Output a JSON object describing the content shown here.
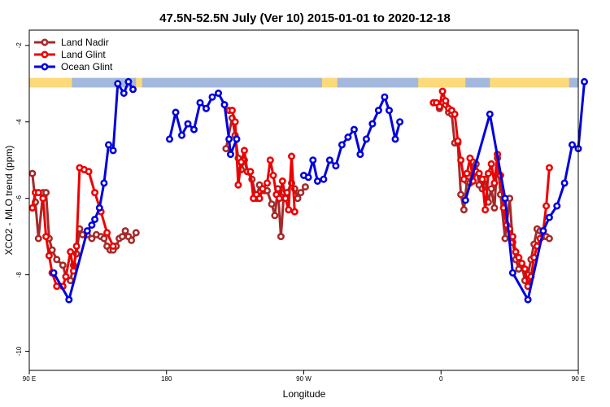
{
  "chart_data": {
    "type": "line",
    "title": "47.5N-52.5N July (Ver 10)   2015-01-01 to 2020-12-18",
    "xlabel": "Longitude",
    "ylabel": "XCO2 - MLO trend (ppm)",
    "xlim": [
      90,
      450
    ],
    "ylim": [
      -10.5,
      -1.6
    ],
    "x_ticks": [
      {
        "value": 90,
        "label": "90 E"
      },
      {
        "value": 180,
        "label": "180"
      },
      {
        "value": 270,
        "label": "90 W"
      },
      {
        "value": 360,
        "label": "0"
      },
      {
        "value": 450,
        "label": "90 E"
      },
      {
        "value": 540,
        "label": "180"
      }
    ],
    "y_ticks": [
      {
        "value": -2,
        "label": "-2"
      },
      {
        "value": -4,
        "label": "-4"
      },
      {
        "value": -6,
        "label": "-6"
      },
      {
        "value": -8,
        "label": "-8"
      },
      {
        "value": -10,
        "label": "-10"
      }
    ],
    "x_axis_note": "Longitude axis runs 90E eastward across 180 and 0 back to 90E and on to 180 (values >180 expressed as degrees east continuing)",
    "land_sea_strip": {
      "y_range": [
        -3.1,
        -2.85
      ],
      "land_color": "#fcd97a",
      "ocean_color": "#a3b8dc"
    },
    "legend_position": "top-left",
    "series": [
      {
        "name": "Land Nadir",
        "color": "#a52a2a",
        "segments": [
          [
            [
              92,
              -5.35
            ],
            [
              94,
              -6.1
            ],
            [
              96,
              -7.05
            ],
            [
              99,
              -5.85
            ],
            [
              101,
              -5.85
            ],
            [
              103,
              -7.05
            ],
            [
              105,
              -7.35
            ],
            [
              108,
              -7.6
            ],
            [
              112,
              -7.75
            ],
            [
              114,
              -8.05
            ],
            [
              117,
              -8.15
            ],
            [
              119,
              -7.75
            ],
            [
              121,
              -7.45
            ],
            [
              123,
              -6.8
            ],
            [
              125,
              -6.95
            ],
            [
              128,
              -6.95
            ],
            [
              131,
              -7.05
            ],
            [
              134,
              -6.95
            ],
            [
              137,
              -7.0
            ],
            [
              139,
              -7.05
            ],
            [
              141,
              -7.25
            ],
            [
              143,
              -7.35
            ],
            [
              145,
              -7.35
            ],
            [
              147,
              -7.25
            ],
            [
              149,
              -7.05
            ],
            [
              151,
              -7.0
            ],
            [
              153,
              -6.85
            ],
            [
              155,
              -7.0
            ],
            [
              157,
              -7.1
            ],
            [
              160,
              -6.9
            ]
          ],
          [
            [
              219,
              -4.7
            ],
            [
              223,
              -3.9
            ],
            [
              225,
              -4.35
            ],
            [
              227,
              -4.95
            ],
            [
              229,
              -5.25
            ],
            [
              231,
              -5.0
            ],
            [
              233,
              -5.3
            ],
            [
              236,
              -5.5
            ],
            [
              239,
              -6.0
            ],
            [
              241,
              -5.65
            ],
            [
              244,
              -5.8
            ],
            [
              246,
              -5.8
            ],
            [
              249,
              -6.15
            ],
            [
              251,
              -6.45
            ],
            [
              253,
              -5.75
            ],
            [
              255,
              -7.0
            ],
            [
              257,
              -5.85
            ],
            [
              259,
              -5.85
            ],
            [
              262,
              -5.6
            ],
            [
              264,
              -5.75
            ],
            [
              266,
              -6.0
            ],
            [
              268,
              -5.85
            ],
            [
              271,
              -5.7
            ]
          ],
          [
            [
              359,
              -3.65
            ],
            [
              361,
              -3.5
            ],
            [
              363,
              -3.55
            ],
            [
              365,
              -3.75
            ],
            [
              367,
              -3.8
            ],
            [
              369,
              -4.55
            ],
            [
              371,
              -4.55
            ],
            [
              373,
              -5.9
            ],
            [
              375,
              -6.3
            ],
            [
              377,
              -5.55
            ],
            [
              379,
              -5.6
            ],
            [
              381,
              -5.05
            ],
            [
              383,
              -5.1
            ],
            [
              385,
              -5.65
            ],
            [
              387,
              -5.75
            ],
            [
              389,
              -5.5
            ],
            [
              391,
              -6.1
            ],
            [
              393,
              -5.75
            ],
            [
              395,
              -6.25
            ],
            [
              397,
              -4.95
            ],
            [
              399,
              -5.9
            ],
            [
              402,
              -7.05
            ],
            [
              405,
              -6.0
            ],
            [
              407,
              -7.15
            ],
            [
              409,
              -7.6
            ],
            [
              411,
              -7.85
            ],
            [
              413,
              -7.75
            ],
            [
              415,
              -8.15
            ],
            [
              417,
              -8.0
            ],
            [
              419,
              -7.6
            ],
            [
              421,
              -7.2
            ],
            [
              423,
              -6.8
            ],
            [
              425,
              -6.85
            ],
            [
              427,
              -7.0
            ],
            [
              429,
              -7.0
            ],
            [
              431,
              -7.05
            ]
          ]
        ]
      },
      {
        "name": "Land Glint",
        "color": "#ee0000",
        "segments": [
          [
            [
              92,
              -6.25
            ],
            [
              94,
              -5.85
            ],
            [
              96,
              -5.85
            ],
            [
              99,
              -6.0
            ],
            [
              101,
              -7.0
            ],
            [
              103,
              -7.5
            ],
            [
              105,
              -7.95
            ],
            [
              108,
              -8.3
            ],
            [
              112,
              -8.3
            ],
            [
              114,
              -8.05
            ],
            [
              117,
              -7.4
            ],
            [
              119,
              -7.9
            ],
            [
              121,
              -7.25
            ],
            [
              123,
              -5.2
            ],
            [
              126,
              -5.25
            ],
            [
              129,
              -5.3
            ],
            [
              133,
              -5.85
            ],
            [
              137,
              -6.35
            ],
            [
              141,
              -6.9
            ],
            [
              145,
              -7.25
            ]
          ],
          [
            [
              221,
              -3.7
            ],
            [
              223,
              -3.7
            ],
            [
              225,
              -4.0
            ],
            [
              227,
              -5.65
            ],
            [
              229,
              -5.05
            ],
            [
              231,
              -4.75
            ],
            [
              233,
              -5.3
            ],
            [
              235,
              -5.3
            ],
            [
              237,
              -6.0
            ],
            [
              239,
              -5.9
            ],
            [
              241,
              -6.0
            ],
            [
              243,
              -5.75
            ],
            [
              246,
              -5.6
            ],
            [
              248,
              -5.0
            ],
            [
              250,
              -5.4
            ],
            [
              252,
              -5.9
            ],
            [
              254,
              -6.0
            ],
            [
              256,
              -5.55
            ],
            [
              258,
              -6.0
            ],
            [
              260,
              -6.3
            ],
            [
              262,
              -4.9
            ],
            [
              264,
              -6.35
            ]
          ],
          [
            [
              355,
              -3.5
            ],
            [
              357,
              -3.5
            ],
            [
              359,
              -3.6
            ],
            [
              361,
              -3.2
            ],
            [
              363,
              -3.45
            ],
            [
              365,
              -3.65
            ],
            [
              367,
              -3.7
            ],
            [
              369,
              -3.8
            ],
            [
              371,
              -4.5
            ],
            [
              373,
              -5.0
            ],
            [
              375,
              -5.5
            ],
            [
              377,
              -5.35
            ],
            [
              379,
              -4.95
            ],
            [
              381,
              -5.55
            ],
            [
              383,
              -5.3
            ],
            [
              385,
              -5.35
            ],
            [
              387,
              -5.5
            ],
            [
              389,
              -6.3
            ],
            [
              391,
              -5.35
            ],
            [
              393,
              -5.1
            ],
            [
              395,
              -5.6
            ],
            [
              397,
              -4.85
            ],
            [
              399,
              -5.4
            ],
            [
              401,
              -6.25
            ],
            [
              403,
              -6.7
            ],
            [
              405,
              -6.8
            ],
            [
              407,
              -7.0
            ],
            [
              409,
              -7.4
            ],
            [
              411,
              -7.55
            ],
            [
              413,
              -7.7
            ],
            [
              415,
              -7.85
            ],
            [
              417,
              -8.3
            ],
            [
              419,
              -8.05
            ],
            [
              421,
              -7.55
            ],
            [
              423,
              -7.25
            ],
            [
              425,
              -7.05
            ],
            [
              427,
              -6.85
            ],
            [
              429,
              -6.2
            ],
            [
              431,
              -5.2
            ]
          ]
        ]
      },
      {
        "name": "Ocean Glint",
        "color": "#0000dd",
        "segments": [
          [
            [
              106,
              -7.95
            ],
            [
              116,
              -8.65
            ],
            [
              128,
              -6.85
            ],
            [
              131,
              -6.7
            ],
            [
              133,
              -6.55
            ],
            [
              136,
              -6.25
            ],
            [
              139,
              -5.6
            ],
            [
              142,
              -4.6
            ],
            [
              145,
              -4.75
            ],
            [
              148,
              -3.0
            ],
            [
              152,
              -3.25
            ],
            [
              155,
              -2.95
            ],
            [
              158,
              -3.15
            ]
          ],
          [
            [
              182,
              -4.45
            ],
            [
              186,
              -3.75
            ],
            [
              190,
              -4.35
            ],
            [
              194,
              -4.05
            ],
            [
              198,
              -4.2
            ],
            [
              202,
              -3.5
            ],
            [
              206,
              -3.65
            ],
            [
              210,
              -3.35
            ],
            [
              214,
              -3.25
            ],
            [
              218,
              -3.55
            ],
            [
              221,
              -4.45
            ],
            [
              222,
              -4.85
            ],
            [
              226,
              -4.45
            ]
          ],
          [
            [
              270,
              -5.4
            ],
            [
              273,
              -5.45
            ],
            [
              276,
              -5.0
            ],
            [
              279,
              -5.55
            ],
            [
              283,
              -5.5
            ],
            [
              287,
              -5.0
            ],
            [
              291,
              -5.15
            ],
            [
              295,
              -4.6
            ],
            [
              299,
              -4.4
            ],
            [
              303,
              -4.2
            ],
            [
              307,
              -4.85
            ],
            [
              311,
              -4.45
            ],
            [
              315,
              -4.05
            ],
            [
              319,
              -3.7
            ],
            [
              323,
              -3.35
            ],
            [
              326,
              -3.7
            ],
            [
              330,
              -4.45
            ],
            [
              333,
              -4.0
            ]
          ],
          [
            [
              376,
              -6.05
            ],
            [
              392,
              -3.8
            ],
            [
              402,
              -6.0
            ],
            [
              407,
              -7.95
            ],
            [
              417,
              -8.65
            ],
            [
              427,
              -6.85
            ],
            [
              431,
              -6.5
            ],
            [
              436,
              -6.2
            ],
            [
              441,
              -5.6
            ],
            [
              446,
              -4.6
            ],
            [
              450,
              -4.7
            ],
            [
              454,
              -2.95
            ]
          ]
        ]
      }
    ]
  }
}
